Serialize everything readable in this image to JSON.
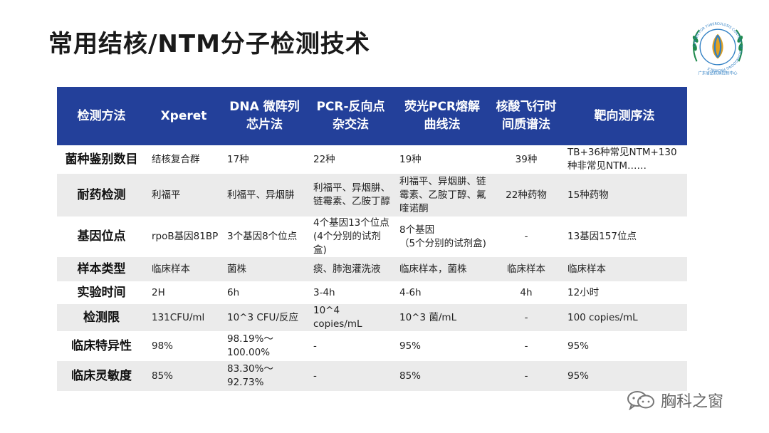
{
  "slide": {
    "title": "常用结核/NTM分子检测技术",
    "watermark": "胸科之窗"
  },
  "colors": {
    "header_bg": "#23409a",
    "header_text": "#ffffff",
    "row_alt_bg": "#ebebeb",
    "logo_ring": "#2f7fc4",
    "logo_leaves": "#1f8a4c",
    "logo_center": "#e0a020"
  },
  "logo": {
    "icon": "tuberculosis-control-center-seal-icon",
    "text_ring": "CENTER FOR TUBERCULOSIS CONTROL OF GUANGDONG PROVINCE",
    "text_bottom": "广东省结核病控制中心"
  },
  "table": {
    "headers": [
      "检测方法",
      "Xperet",
      "DNA 微阵列\n芯片法",
      "PCR-反向点\n杂交法",
      "荧光PCR熔解\n曲线法",
      "核酸飞行时\n间质谱法",
      "靶向测序法"
    ],
    "rows": [
      [
        "菌种鉴别数目",
        "结核复合群",
        "17种",
        "22种",
        "19种",
        "39种",
        "TB+36种常见NTM+130\n种非常见NTM……"
      ],
      [
        "耐药检测",
        "利福平",
        "利福平、异烟肼",
        "利福平、异烟肼、\n链霉素、乙胺丁醇",
        "利福平、异烟肼、链\n霉素、乙胺丁醇、氟\n喹诺酮",
        "22种药物",
        "15种药物"
      ],
      [
        "基因位点",
        "rpoB基因81BP",
        "3个基因8个位点",
        "4个基因13个位点\n(4个分别的试剂盒)",
        "8个基因\n（5个分别的试剂盒)",
        "-",
        "13基因157位点"
      ],
      [
        "样本类型",
        "临床样本",
        "菌株",
        "痰、肺泡灌洗液",
        "临床样本，菌株",
        "临床样本",
        "临床样本"
      ],
      [
        "实验时间",
        "2H",
        "6h",
        "3-4h",
        "4-6h",
        "4h",
        "12小时"
      ],
      [
        "检测限",
        "131CFU/ml",
        "10^3 CFU/反应",
        "10^4 copies/mL",
        "10^3 菌/mL",
        "-",
        "100 copies/mL"
      ],
      [
        "临床特异性",
        "98%",
        "98.19%～\n100.00%",
        "-",
        "95%",
        "-",
        "95%"
      ],
      [
        "临床灵敏度",
        "85%",
        "83.30%～\n92.73%",
        "-",
        "85%",
        "-",
        "95%"
      ]
    ]
  }
}
